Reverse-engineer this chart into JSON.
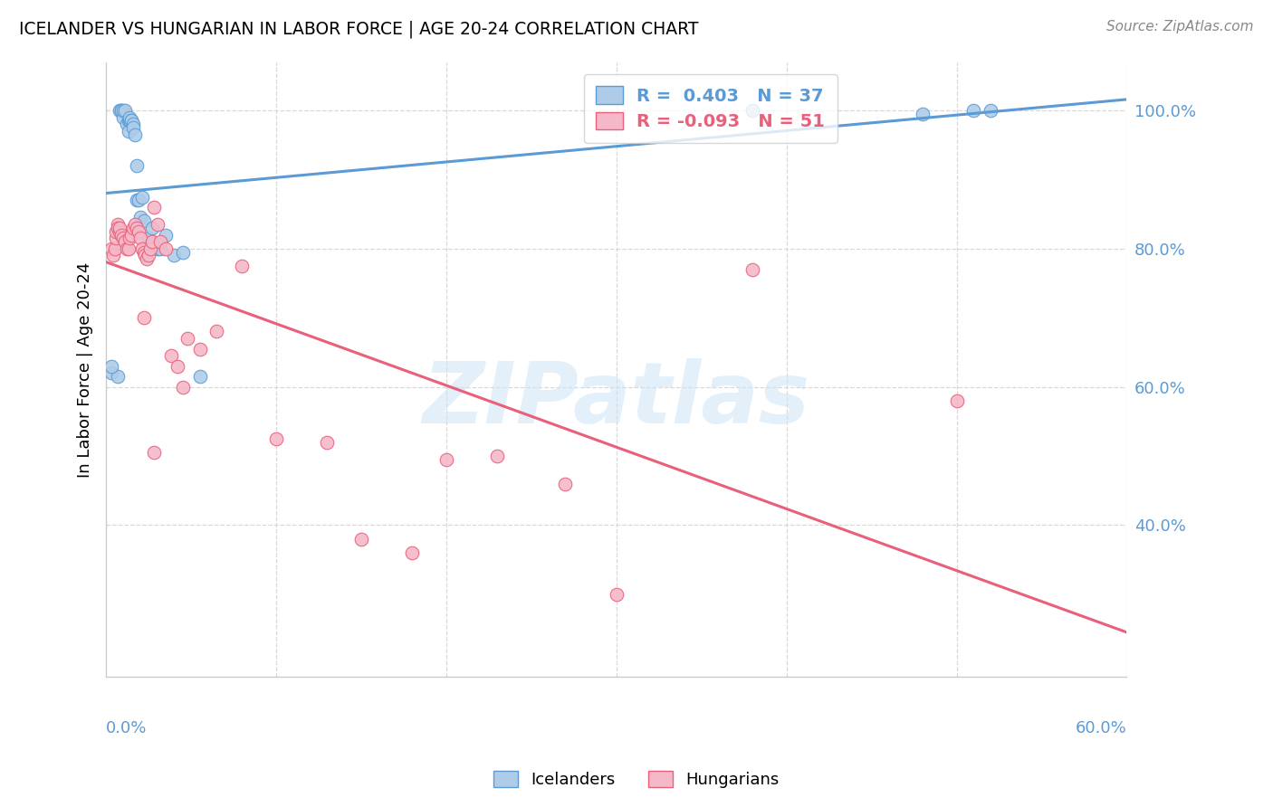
{
  "title": "ICELANDER VS HUNGARIAN IN LABOR FORCE | AGE 20-24 CORRELATION CHART",
  "source": "Source: ZipAtlas.com",
  "ylabel": "In Labor Force | Age 20-24",
  "xlim": [
    0.0,
    0.6
  ],
  "ylim": [
    0.18,
    1.07
  ],
  "ice_color": "#aecce8",
  "hun_color": "#f5b8c8",
  "ice_edge_color": "#5b9bd5",
  "hun_edge_color": "#e8607a",
  "ice_line_color": "#5b9bd5",
  "hun_line_color": "#e8607a",
  "watermark": "ZIPatlas",
  "icelanders_x": [
    0.003,
    0.007,
    0.008,
    0.009,
    0.009,
    0.01,
    0.01,
    0.011,
    0.012,
    0.013,
    0.013,
    0.014,
    0.014,
    0.015,
    0.015,
    0.016,
    0.016,
    0.017,
    0.018,
    0.018,
    0.019,
    0.02,
    0.021,
    0.022,
    0.025,
    0.027,
    0.03,
    0.032,
    0.035,
    0.04,
    0.045,
    0.055,
    0.38,
    0.48,
    0.51,
    0.52,
    0.003
  ],
  "icelanders_y": [
    0.62,
    0.615,
    1.0,
    1.0,
    1.0,
    0.99,
    1.0,
    1.0,
    0.98,
    0.97,
    0.985,
    0.985,
    0.99,
    0.985,
    0.985,
    0.98,
    0.975,
    0.965,
    0.92,
    0.87,
    0.87,
    0.845,
    0.875,
    0.84,
    0.815,
    0.83,
    0.8,
    0.8,
    0.82,
    0.79,
    0.795,
    0.615,
    1.0,
    0.995,
    1.0,
    1.0,
    0.63
  ],
  "hungarians_x": [
    0.003,
    0.004,
    0.005,
    0.006,
    0.006,
    0.007,
    0.007,
    0.008,
    0.008,
    0.009,
    0.01,
    0.011,
    0.012,
    0.013,
    0.014,
    0.015,
    0.016,
    0.017,
    0.018,
    0.019,
    0.02,
    0.021,
    0.022,
    0.023,
    0.024,
    0.025,
    0.026,
    0.027,
    0.028,
    0.03,
    0.032,
    0.035,
    0.038,
    0.042,
    0.048,
    0.055,
    0.065,
    0.08,
    0.1,
    0.13,
    0.15,
    0.18,
    0.2,
    0.23,
    0.27,
    0.3,
    0.38,
    0.5,
    0.022,
    0.028,
    0.045
  ],
  "hungarians_y": [
    0.8,
    0.79,
    0.8,
    0.815,
    0.825,
    0.835,
    0.83,
    0.825,
    0.83,
    0.82,
    0.815,
    0.81,
    0.8,
    0.8,
    0.815,
    0.82,
    0.83,
    0.835,
    0.83,
    0.825,
    0.815,
    0.8,
    0.795,
    0.79,
    0.785,
    0.79,
    0.8,
    0.81,
    0.86,
    0.835,
    0.81,
    0.8,
    0.645,
    0.63,
    0.67,
    0.655,
    0.68,
    0.775,
    0.525,
    0.52,
    0.38,
    0.36,
    0.495,
    0.5,
    0.46,
    0.3,
    0.77,
    0.58,
    0.7,
    0.505,
    0.6
  ],
  "ytick_positions": [
    0.4,
    0.6,
    0.8,
    1.0
  ],
  "ytick_labels": [
    "40.0%",
    "60.0%",
    "80.0%",
    "100.0%"
  ],
  "xtick_label_left": "0.0%",
  "xtick_label_right": "60.0%",
  "legend_R_ice": "R =  0.403",
  "legend_N_ice": "N = 37",
  "legend_R_hun": "R = -0.093",
  "legend_N_hun": "N = 51",
  "grid_color": "#d8d8d8",
  "tick_color": "#5b9bd5"
}
